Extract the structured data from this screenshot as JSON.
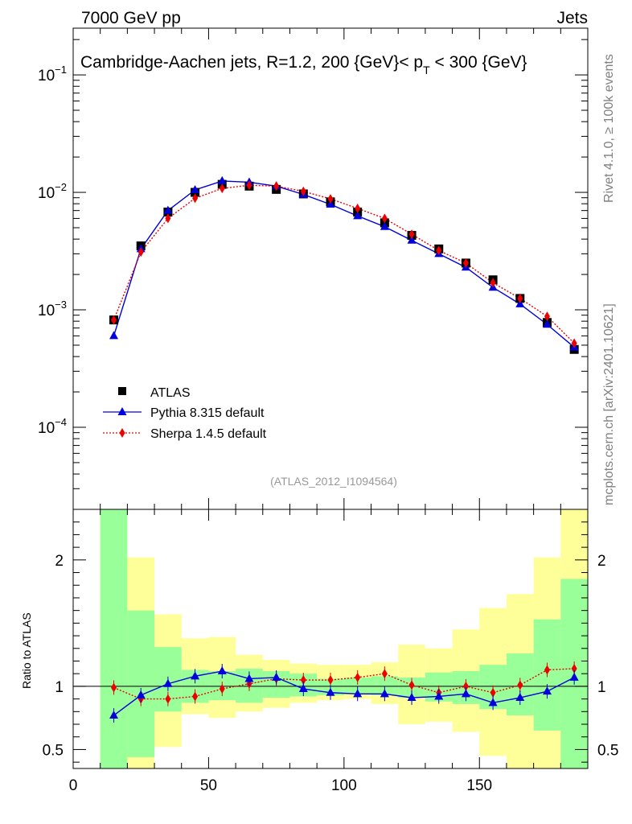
{
  "header": {
    "left": "7000 GeV pp",
    "right": "Jets"
  },
  "side_text": {
    "rivet": "Rivet 4.1.0, ≥ 100k events",
    "mcplots": "mcplots.cern.ch [arXiv:2401.10621]"
  },
  "plot_title": {
    "main": "Cambridge-Aachen jets, R=1.2,  200 {GeV}< p",
    "sub": "T",
    "tail": " < 300 {GeV}"
  },
  "analysis_id": "(ATLAS_2012_I1094564)",
  "ratio_ylabel": "Ratio to ATLAS",
  "legend": {
    "atlas": "ATLAS",
    "pythia": "Pythia 8.315 default",
    "sherpa": "Sherpa 1.4.5 default"
  },
  "colors": {
    "atlas": "#000000",
    "pythia": "#0000dd",
    "sherpa": "#ee0000",
    "band_green": "#99ff99",
    "band_yellow": "#ffff99"
  },
  "chart_data": [
    {
      "type": "scatter",
      "panel": "main",
      "yscale": "log",
      "xlim": [
        0,
        190
      ],
      "ylim": [
        2e-05,
        0.25
      ],
      "yticks": [
        {
          "value": 0.1,
          "label": "10",
          "exp": "−1"
        },
        {
          "value": 0.01,
          "label": "10",
          "exp": "−2"
        },
        {
          "value": 0.001,
          "label": "10",
          "exp": "−3"
        },
        {
          "value": 0.0001,
          "label": "10",
          "exp": "−4"
        }
      ],
      "x": [
        15,
        25,
        35,
        45,
        55,
        65,
        75,
        85,
        95,
        105,
        115,
        125,
        135,
        145,
        155,
        165,
        175,
        185
      ],
      "series": [
        {
          "name": "ATLAS",
          "values": [
            0.00082,
            0.0035,
            0.0068,
            0.01,
            0.0117,
            0.0113,
            0.0106,
            0.0097,
            0.0083,
            0.0068,
            0.0055,
            0.0043,
            0.0033,
            0.0025,
            0.0018,
            0.00125,
            0.00078,
            0.00046
          ]
        },
        {
          "name": "Pythia 8.315 default",
          "values": [
            0.0006,
            0.0033,
            0.007,
            0.0105,
            0.0125,
            0.0122,
            0.0113,
            0.0096,
            0.0079,
            0.0063,
            0.0051,
            0.0039,
            0.003,
            0.0023,
            0.00155,
            0.00112,
            0.00075,
            0.00048
          ]
        },
        {
          "name": "Sherpa 1.4.5 default",
          "values": [
            0.00082,
            0.0031,
            0.006,
            0.0089,
            0.0108,
            0.0115,
            0.0113,
            0.0102,
            0.0088,
            0.0073,
            0.006,
            0.0044,
            0.0032,
            0.0025,
            0.0017,
            0.00125,
            0.00088,
            0.00052
          ]
        }
      ]
    },
    {
      "type": "line",
      "panel": "ratio",
      "xlim": [
        0,
        190
      ],
      "ylim": [
        0.35,
        2.4
      ],
      "yticks": [
        0.5,
        1,
        2
      ],
      "xticks": [
        0,
        50,
        100,
        150
      ],
      "bin_edges": [
        10,
        20,
        30,
        40,
        50,
        60,
        70,
        80,
        90,
        100,
        110,
        120,
        130,
        140,
        150,
        160,
        170,
        180,
        190
      ],
      "green_band": [
        [
          0.35,
          2.4
        ],
        [
          0.44,
          1.6
        ],
        [
          0.8,
          1.31
        ],
        [
          0.87,
          1.13
        ],
        [
          0.89,
          1.12
        ],
        [
          0.87,
          1.14
        ],
        [
          0.91,
          1.12
        ],
        [
          0.92,
          1.1
        ],
        [
          0.93,
          1.06
        ],
        [
          0.94,
          1.07
        ],
        [
          0.93,
          1.08
        ],
        [
          0.91,
          1.07
        ],
        [
          0.88,
          1.11
        ],
        [
          0.86,
          1.12
        ],
        [
          0.82,
          1.17
        ],
        [
          0.77,
          1.26
        ],
        [
          0.65,
          1.53
        ],
        [
          0.35,
          1.85
        ]
      ],
      "yellow_band": [
        [
          0.35,
          2.4
        ],
        [
          0.35,
          2.02
        ],
        [
          0.52,
          1.57
        ],
        [
          0.78,
          1.38
        ],
        [
          0.75,
          1.39
        ],
        [
          0.8,
          1.25
        ],
        [
          0.83,
          1.21
        ],
        [
          0.87,
          1.18
        ],
        [
          0.89,
          1.17
        ],
        [
          0.9,
          1.17
        ],
        [
          0.86,
          1.19
        ],
        [
          0.7,
          1.33
        ],
        [
          0.72,
          1.3
        ],
        [
          0.64,
          1.45
        ],
        [
          0.45,
          1.62
        ],
        [
          0.35,
          1.73
        ],
        [
          0.35,
          2.02
        ],
        [
          0.35,
          2.4
        ]
      ],
      "x": [
        15,
        25,
        35,
        45,
        55,
        65,
        75,
        85,
        95,
        105,
        115,
        125,
        135,
        145,
        155,
        165,
        175,
        185
      ],
      "series": [
        {
          "name": "Pythia 8.315 default",
          "values": [
            0.77,
            0.93,
            1.02,
            1.08,
            1.12,
            1.06,
            1.07,
            0.98,
            0.95,
            0.94,
            0.94,
            0.91,
            0.92,
            0.94,
            0.87,
            0.91,
            0.96,
            1.07
          ]
        },
        {
          "name": "Sherpa 1.4.5 default",
          "values": [
            0.99,
            0.9,
            0.9,
            0.92,
            0.98,
            1.02,
            1.06,
            1.05,
            1.05,
            1.07,
            1.1,
            1.01,
            0.95,
            1.0,
            0.95,
            1.01,
            1.13,
            1.14
          ]
        }
      ]
    }
  ]
}
